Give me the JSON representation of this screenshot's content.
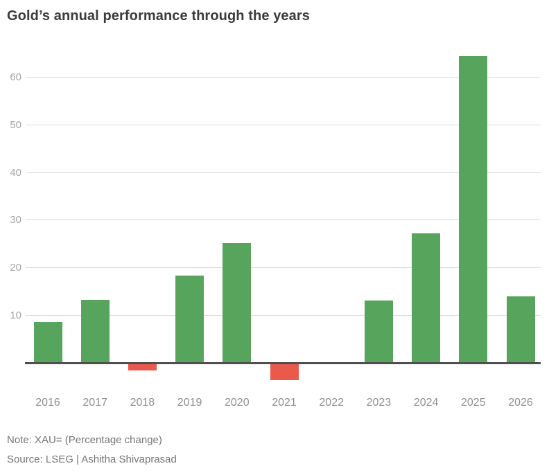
{
  "header": {
    "title": "Gold’s annual performance through the years"
  },
  "chart_data": {
    "type": "bar",
    "title": "Gold’s annual performance through the years",
    "categories": [
      "2016",
      "2017",
      "2018",
      "2019",
      "2020",
      "2021",
      "2022",
      "2023",
      "2024",
      "2025",
      "2026"
    ],
    "values": [
      8.5,
      13.2,
      -1.6,
      18.3,
      25.1,
      -3.6,
      -0.3,
      13.1,
      27.2,
      64.4,
      14.0
    ],
    "xlabel": "",
    "ylabel": "",
    "yticks": [
      10,
      20,
      30,
      40,
      50,
      60
    ],
    "ylim": [
      -8,
      67
    ],
    "grid": true,
    "legend": "none",
    "colors": {
      "positive": "#57a55d",
      "negative": "#e95a4d",
      "zero_line": "#4f4f4f",
      "gridline": "#dadada",
      "tick_label": "#a6a6a6",
      "category_label": "#8f8f8f",
      "title": "#3b3b3b",
      "footnote": "#757575"
    }
  },
  "footer": {
    "note": "Note: XAU= (Percentage change)",
    "source": "Source: LSEG | Ashitha Shivaprasad"
  }
}
